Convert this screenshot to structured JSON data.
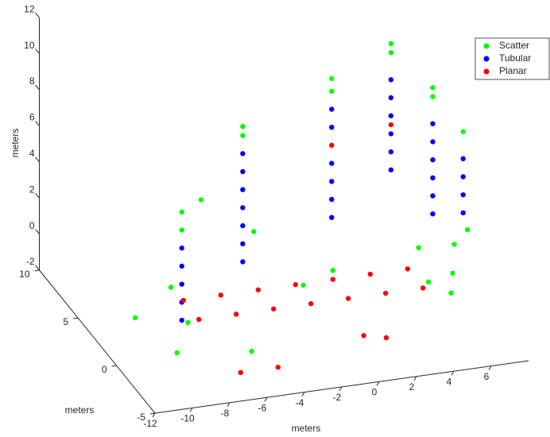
{
  "chart_data": {
    "type": "scatter3d",
    "x_label": "meters",
    "y_label": "meters",
    "z_label": "meters",
    "xlim": [
      -12,
      8
    ],
    "ylim": [
      -5,
      10
    ],
    "zlim": [
      -2,
      12
    ],
    "xticks": [
      -12,
      -10,
      -8,
      -6,
      -4,
      -2,
      0,
      2,
      4,
      6
    ],
    "yticks": [
      -5,
      0,
      5,
      10
    ],
    "zticks": [
      -2,
      0,
      2,
      4,
      6,
      8,
      10,
      12
    ],
    "legend": "upper right",
    "series": [
      {
        "name": "Scatter",
        "color": "#00ff00",
        "x": [
          -8.5,
          -8.5,
          -4,
          -4,
          2,
          2,
          6,
          6,
          7,
          7,
          7.8,
          6,
          6.5,
          7,
          5.5,
          -10,
          -9,
          -11,
          -6,
          -3,
          -5,
          5,
          4.5,
          -9.5,
          -7,
          -2,
          0
        ],
        "y": [
          0,
          0,
          3,
          3,
          6,
          6,
          8,
          8,
          5,
          5,
          3,
          0,
          1,
          0.5,
          -1,
          -3,
          -2,
          0,
          -3,
          4,
          6,
          2,
          -0.5,
          -1,
          -4,
          0,
          1
        ],
        "z": [
          5,
          6,
          8,
          8.5,
          8,
          8.7,
          8.5,
          9,
          7.5,
          8,
          6.5,
          0.5,
          1.5,
          2.5,
          0,
          0,
          1,
          0.5,
          -0.5,
          2,
          3,
          1,
          0.5,
          2.5,
          -1,
          1,
          1
        ]
      },
      {
        "name": "Tubular",
        "color": "#0000ff",
        "x": [
          -8.5,
          -8.5,
          -8.5,
          -8.5,
          -8.5,
          -4,
          -4,
          -4,
          -4,
          -4,
          -4,
          -4,
          2,
          2,
          2,
          2,
          2,
          2,
          6,
          6,
          6,
          6,
          6,
          6,
          7,
          7,
          7,
          7,
          7,
          7,
          7.8,
          7.8,
          7.8,
          7.8
        ],
        "y": [
          0,
          0,
          0,
          0,
          0,
          3,
          3,
          3,
          3,
          3,
          3,
          3,
          6,
          6,
          6,
          6,
          6,
          6,
          8,
          8,
          8,
          8,
          8,
          8,
          5,
          5,
          5,
          5,
          5,
          5,
          3,
          3,
          3,
          3
        ],
        "z": [
          0,
          1,
          2,
          3,
          4,
          1,
          2,
          3,
          4,
          5,
          6,
          7,
          1,
          2,
          3,
          4,
          6,
          7,
          2,
          3,
          4,
          5,
          6,
          7,
          1,
          2,
          3,
          4,
          5,
          6,
          2,
          3,
          4,
          5
        ]
      },
      {
        "name": "Planar",
        "color": "#ff0000",
        "x": [
          -8,
          -6,
          -4,
          -2,
          0,
          2,
          4,
          -8,
          -6,
          -4,
          -2,
          0,
          2,
          4,
          -7,
          -5,
          0,
          1,
          2,
          6
        ],
        "y": [
          -1,
          -1,
          -1,
          -1,
          -1,
          -1,
          -1,
          1,
          1,
          1,
          1,
          1,
          1,
          1,
          -4,
          -4,
          -3,
          -3.5,
          6,
          8
        ],
        "z": [
          0.5,
          0.5,
          0.5,
          0.5,
          0.5,
          0.5,
          0.5,
          0.5,
          0.5,
          0.5,
          0.5,
          0.5,
          0.5,
          0.5,
          -1,
          -1,
          -0.5,
          -0.5,
          5,
          4.5
        ]
      }
    ]
  }
}
